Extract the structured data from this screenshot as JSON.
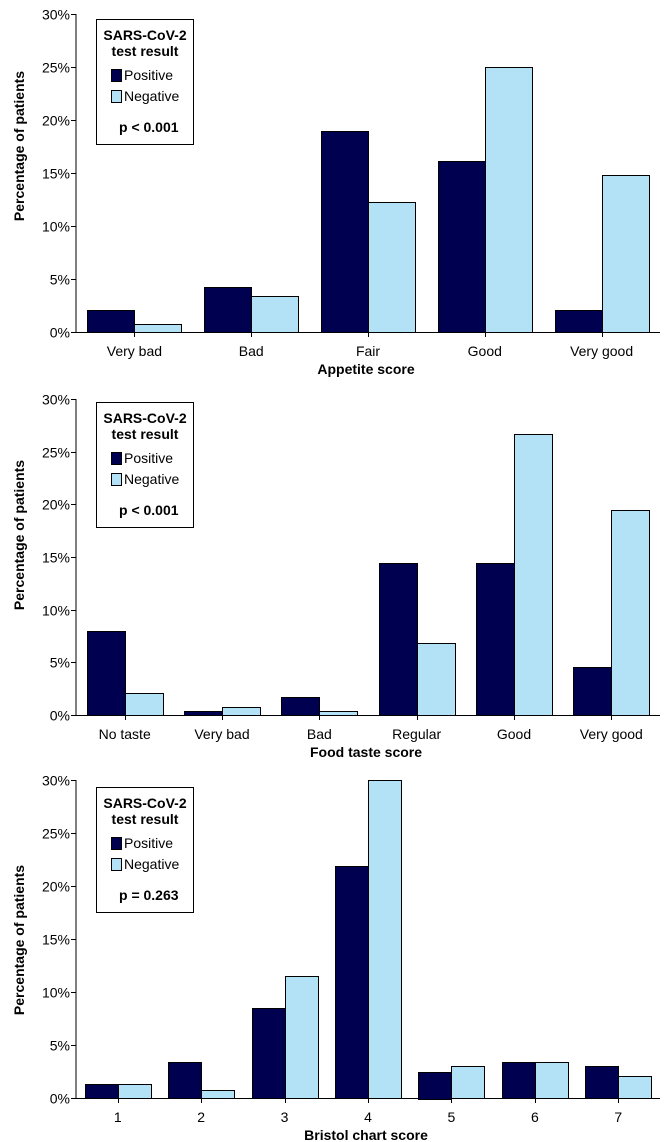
{
  "legend": {
    "title_line1": "SARS-CoV-2",
    "title_line2": "test result",
    "positive": "Positive",
    "negative": "Negative"
  },
  "colors": {
    "positive": "#000050",
    "negative": "#b3e2f6"
  },
  "chart_data": [
    {
      "type": "bar",
      "xlabel": "Appetite score",
      "ylabel": "Percentage of patients",
      "ylim": [
        0,
        30
      ],
      "yticks": [
        "0%",
        "5%",
        "10%",
        "15%",
        "20%",
        "25%",
        "30%"
      ],
      "categories": [
        "Very bad",
        "Bad",
        "Fair",
        "Good",
        "Very good"
      ],
      "series": [
        {
          "name": "Positive",
          "values": [
            2.1,
            4.2,
            19.0,
            16.1,
            2.1
          ]
        },
        {
          "name": "Negative",
          "values": [
            0.8,
            3.4,
            12.3,
            25.0,
            14.8
          ]
        }
      ],
      "annotation": "p < 0.001",
      "legend_position": "top-left"
    },
    {
      "type": "bar",
      "xlabel": "Food taste score",
      "ylabel": "Percentage of patients",
      "ylim": [
        0,
        30
      ],
      "yticks": [
        "0%",
        "5%",
        "10%",
        "15%",
        "20%",
        "25%",
        "30%"
      ],
      "categories": [
        "No taste",
        "Very bad",
        "Bad",
        "Regular",
        "Good",
        "Very good"
      ],
      "series": [
        {
          "name": "Positive",
          "values": [
            8.0,
            0.4,
            1.7,
            14.4,
            14.4,
            4.6
          ]
        },
        {
          "name": "Negative",
          "values": [
            2.1,
            0.8,
            0.4,
            6.8,
            26.7,
            19.5
          ]
        }
      ],
      "annotation": "p < 0.001",
      "legend_position": "top-left"
    },
    {
      "type": "bar",
      "xlabel": "Bristol chart score",
      "ylabel": "Percentage of patients",
      "ylim": [
        0,
        30
      ],
      "yticks": [
        "0%",
        "5%",
        "10%",
        "15%",
        "20%",
        "25%",
        "30%"
      ],
      "categories": [
        "1",
        "2",
        "3",
        "4",
        "5",
        "6",
        "7"
      ],
      "series": [
        {
          "name": "Positive",
          "values": [
            1.3,
            3.4,
            8.5,
            21.9,
            2.5,
            3.4,
            3.0
          ]
        },
        {
          "name": "Negative",
          "values": [
            1.3,
            0.8,
            11.5,
            30.0,
            3.0,
            3.4,
            2.1
          ]
        }
      ],
      "annotation": "p = 0.263",
      "legend_position": "top-left"
    }
  ]
}
